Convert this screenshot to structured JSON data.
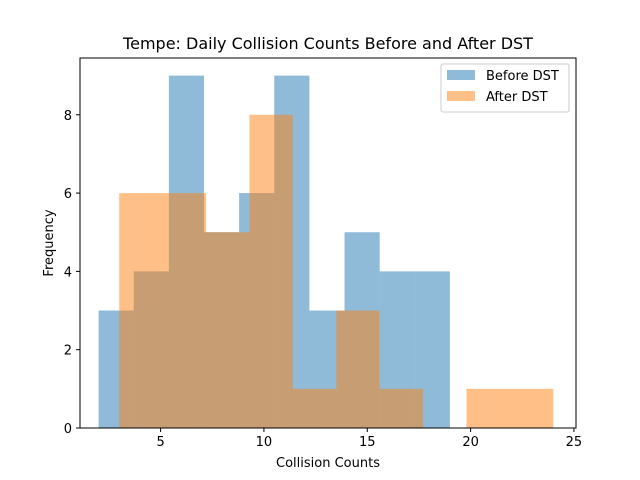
{
  "chart_data": {
    "type": "histogram",
    "title": "Tempe: Daily Collision Counts Before and After DST",
    "xlabel": "Collision Counts",
    "ylabel": "Frequency",
    "xlim": [
      1.1,
      25.1
    ],
    "ylim": [
      0,
      9.45
    ],
    "xticks": [
      5,
      10,
      15,
      20,
      25
    ],
    "yticks": [
      0,
      2,
      4,
      6,
      8
    ],
    "legend_position": "top-right",
    "series": [
      {
        "name": "Before DST",
        "color": "#1f77b4",
        "alpha": 0.5,
        "bins": [
          {
            "x0": 2.0,
            "x1": 3.7,
            "count": 3
          },
          {
            "x0": 3.7,
            "x1": 5.4,
            "count": 4
          },
          {
            "x0": 5.4,
            "x1": 7.1,
            "count": 9
          },
          {
            "x0": 7.1,
            "x1": 8.8,
            "count": 5
          },
          {
            "x0": 8.8,
            "x1": 10.5,
            "count": 6
          },
          {
            "x0": 10.5,
            "x1": 12.2,
            "count": 9
          },
          {
            "x0": 12.2,
            "x1": 13.9,
            "count": 3
          },
          {
            "x0": 13.9,
            "x1": 15.6,
            "count": 5
          },
          {
            "x0": 15.6,
            "x1": 17.3,
            "count": 4
          },
          {
            "x0": 17.3,
            "x1": 19.0,
            "count": 4
          }
        ]
      },
      {
        "name": "After DST",
        "color": "#ff7f0e",
        "alpha": 0.5,
        "bins": [
          {
            "x0": 3.0,
            "x1": 5.1,
            "count": 6
          },
          {
            "x0": 5.1,
            "x1": 7.2,
            "count": 6
          },
          {
            "x0": 7.2,
            "x1": 9.3,
            "count": 5
          },
          {
            "x0": 9.3,
            "x1": 11.4,
            "count": 8
          },
          {
            "x0": 11.4,
            "x1": 13.5,
            "count": 1
          },
          {
            "x0": 13.5,
            "x1": 15.6,
            "count": 3
          },
          {
            "x0": 15.6,
            "x1": 17.7,
            "count": 1
          },
          {
            "x0": 17.7,
            "x1": 19.8,
            "count": 0
          },
          {
            "x0": 19.8,
            "x1": 21.9,
            "count": 1
          },
          {
            "x0": 21.9,
            "x1": 24.0,
            "count": 1
          }
        ]
      }
    ]
  }
}
